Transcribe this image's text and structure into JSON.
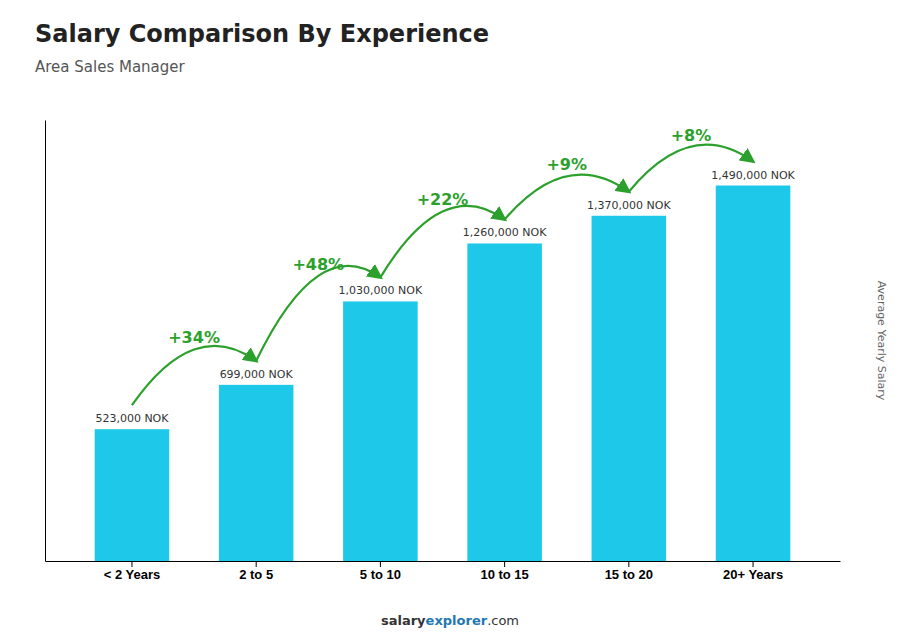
{
  "chart_data": {
    "type": "bar",
    "title": "Salary Comparison By Experience",
    "subtitle": "Area Sales Manager",
    "ylabel": "Average Yearly Salary",
    "categories": [
      "< 2 Years",
      "2 to 5",
      "5 to 10",
      "10 to 15",
      "15 to 20",
      "20+ Years"
    ],
    "values": [
      523000,
      699000,
      1030000,
      1260000,
      1370000,
      1490000
    ],
    "value_labels": [
      "523,000 NOK",
      "699,000 NOK",
      "1,030,000 NOK",
      "1,260,000 NOK",
      "1,370,000 NOK",
      "1,490,000 NOK"
    ],
    "data_labels": true,
    "annotations": [
      "+34%",
      "+48%",
      "+22%",
      "+9%",
      "+8%"
    ],
    "watermark": [
      "salary",
      "explorer",
      ".com"
    ],
    "color": "#1EC8E8",
    "ylim": [
      0,
      1750000
    ],
    "yticks": [],
    "tick_labels": "x"
  }
}
